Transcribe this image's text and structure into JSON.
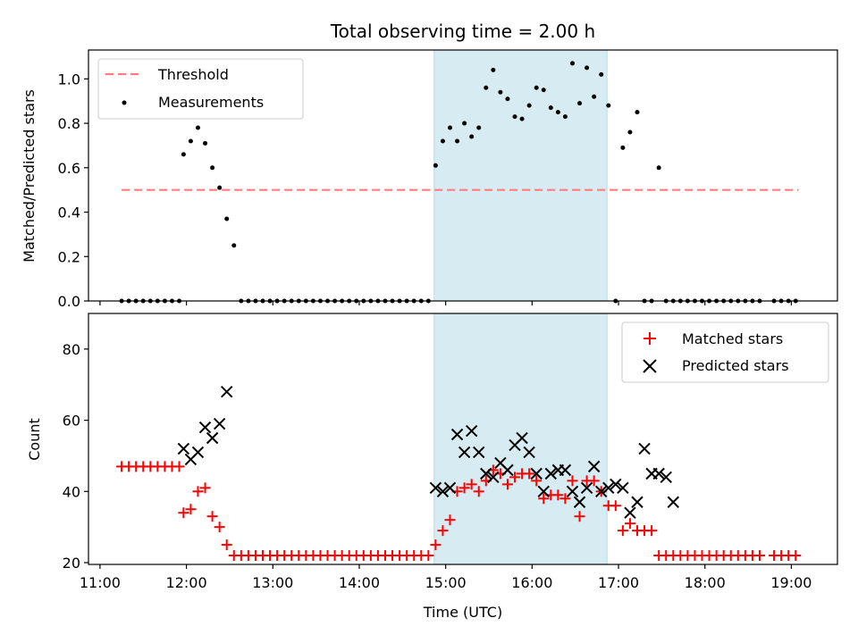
{
  "chart_data": [
    {
      "type": "scatter",
      "title": "Total observing time = 2.00 h",
      "xlabel": "",
      "ylabel": "Matched/Predicted stars",
      "ylim": [
        0,
        1.13
      ],
      "yticks": [
        "0.0",
        "0.2",
        "0.4",
        "0.6",
        "0.8",
        "1.0"
      ],
      "highlight_span": {
        "from": "14:52",
        "to": "16:52",
        "color": "#add8e6"
      },
      "legend": {
        "position": "top-left",
        "entries": [
          "Threshold",
          "Measurements"
        ]
      },
      "threshold": {
        "name": "Threshold",
        "value": 0.5,
        "from": "11:15",
        "to": "19:05",
        "color": "#ff7f7f"
      },
      "series": [
        {
          "name": "Measurements",
          "color": "#000000",
          "x": [
            "11:15",
            "11:20",
            "11:25",
            "11:30",
            "11:35",
            "11:40",
            "11:45",
            "11:50",
            "11:55",
            "11:58",
            "12:03",
            "12:08",
            "12:13",
            "12:18",
            "12:23",
            "12:28",
            "12:33",
            "12:38",
            "12:43",
            "12:48",
            "12:53",
            "12:58",
            "13:03",
            "13:08",
            "13:13",
            "13:18",
            "13:23",
            "13:28",
            "13:33",
            "13:38",
            "13:43",
            "13:48",
            "13:53",
            "13:58",
            "14:03",
            "14:08",
            "14:13",
            "14:18",
            "14:23",
            "14:28",
            "14:33",
            "14:38",
            "14:43",
            "14:48",
            "14:53",
            "14:58",
            "15:03",
            "15:08",
            "15:13",
            "15:18",
            "15:23",
            "15:28",
            "15:33",
            "15:38",
            "15:43",
            "15:48",
            "15:53",
            "15:58",
            "16:03",
            "16:08",
            "16:13",
            "16:18",
            "16:23",
            "16:28",
            "16:33",
            "16:38",
            "16:43",
            "16:48",
            "16:53",
            "16:58",
            "17:03",
            "17:08",
            "17:13",
            "17:18",
            "17:23",
            "17:28",
            "17:33",
            "17:38",
            "17:43",
            "17:48",
            "17:53",
            "17:58",
            "18:03",
            "18:08",
            "18:13",
            "18:18",
            "18:23",
            "18:28",
            "18:33",
            "18:38",
            "18:48",
            "18:53",
            "18:58",
            "19:03"
          ],
          "y": [
            0,
            0,
            0,
            0,
            0,
            0,
            0,
            0,
            0,
            0.66,
            0.72,
            0.78,
            0.71,
            0.6,
            0.51,
            0.37,
            0.25,
            0,
            0,
            0,
            0,
            0,
            0,
            0,
            0,
            0,
            0,
            0,
            0,
            0,
            0,
            0,
            0,
            0,
            0,
            0,
            0,
            0,
            0,
            0,
            0,
            0,
            0,
            0,
            0.61,
            0.72,
            0.78,
            0.72,
            0.8,
            0.74,
            0.78,
            0.96,
            1.04,
            0.94,
            0.91,
            0.83,
            0.82,
            0.88,
            0.96,
            0.95,
            0.87,
            0.85,
            0.83,
            1.07,
            0.89,
            1.05,
            0.92,
            1.02,
            0.88,
            0,
            0.69,
            0.76,
            0.85,
            0,
            0,
            0.6,
            0,
            0,
            0,
            0,
            0,
            0,
            0,
            0,
            0,
            0,
            0,
            0,
            0,
            0,
            0,
            0,
            0,
            0
          ]
        }
      ]
    },
    {
      "type": "scatter",
      "xlabel": "Time (UTC)",
      "ylabel": "Count",
      "ylim": [
        19.5,
        90
      ],
      "yticks": [
        "20",
        "40",
        "60",
        "80"
      ],
      "xticks": [
        "11:00",
        "12:00",
        "13:00",
        "14:00",
        "15:00",
        "16:00",
        "17:00",
        "18:00",
        "19:00"
      ],
      "xlim": [
        "10:52",
        "19:32"
      ],
      "highlight_span": {
        "from": "14:52",
        "to": "16:52",
        "color": "#add8e6"
      },
      "legend": {
        "position": "top-right",
        "entries": [
          "Matched stars",
          "Predicted stars"
        ]
      },
      "series": [
        {
          "name": "Matched stars",
          "marker": "plus",
          "color": "#ff0000",
          "x": [
            "11:15",
            "11:20",
            "11:25",
            "11:30",
            "11:35",
            "11:40",
            "11:45",
            "11:50",
            "11:55",
            "11:58",
            "12:03",
            "12:08",
            "12:13",
            "12:18",
            "12:23",
            "12:28",
            "12:33",
            "12:38",
            "12:43",
            "12:48",
            "12:53",
            "12:58",
            "13:03",
            "13:08",
            "13:13",
            "13:18",
            "13:23",
            "13:28",
            "13:33",
            "13:38",
            "13:43",
            "13:48",
            "13:53",
            "13:58",
            "14:03",
            "14:08",
            "14:13",
            "14:18",
            "14:23",
            "14:28",
            "14:33",
            "14:38",
            "14:43",
            "14:48",
            "14:53",
            "14:58",
            "15:03",
            "15:08",
            "15:13",
            "15:18",
            "15:23",
            "15:28",
            "15:33",
            "15:38",
            "15:43",
            "15:48",
            "15:53",
            "15:58",
            "16:03",
            "16:08",
            "16:13",
            "16:18",
            "16:23",
            "16:28",
            "16:33",
            "16:38",
            "16:43",
            "16:48",
            "16:53",
            "16:58",
            "17:03",
            "17:08",
            "17:13",
            "17:18",
            "17:23",
            "17:28",
            "17:33",
            "17:38",
            "17:43",
            "17:48",
            "17:53",
            "17:58",
            "18:03",
            "18:08",
            "18:13",
            "18:18",
            "18:23",
            "18:28",
            "18:33",
            "18:38",
            "18:48",
            "18:53",
            "18:58",
            "19:03"
          ],
          "y": [
            47,
            47,
            47,
            47,
            47,
            47,
            47,
            47,
            47,
            34,
            35,
            40,
            41,
            33,
            30,
            25,
            22,
            22,
            22,
            22,
            22,
            22,
            22,
            22,
            22,
            22,
            22,
            22,
            22,
            22,
            22,
            22,
            22,
            22,
            22,
            22,
            22,
            22,
            22,
            22,
            22,
            22,
            22,
            22,
            25,
            29,
            32,
            40,
            41,
            42,
            40,
            43,
            46,
            45,
            42,
            44,
            45,
            45,
            43,
            38,
            39,
            39,
            38,
            43,
            33,
            43,
            43,
            40,
            36,
            36,
            29,
            31,
            29,
            29,
            29,
            22,
            22,
            22,
            22,
            22,
            22,
            22,
            22,
            22,
            22,
            22,
            22,
            22,
            22,
            22,
            22,
            22,
            22,
            22
          ]
        },
        {
          "name": "Predicted stars",
          "marker": "x",
          "color": "#000000",
          "x": [
            "11:58",
            "12:03",
            "12:08",
            "12:13",
            "12:18",
            "12:23",
            "12:28",
            "14:53",
            "14:58",
            "15:03",
            "15:08",
            "15:13",
            "15:18",
            "15:23",
            "15:28",
            "15:33",
            "15:38",
            "15:43",
            "15:48",
            "15:53",
            "15:58",
            "16:03",
            "16:08",
            "16:13",
            "16:18",
            "16:23",
            "16:28",
            "16:33",
            "16:38",
            "16:43",
            "16:48",
            "16:53",
            "16:58",
            "17:03",
            "17:08",
            "17:13",
            "17:18",
            "17:23",
            "17:28",
            "17:33",
            "17:38"
          ],
          "y": [
            52,
            49,
            51,
            58,
            55,
            59,
            68,
            41,
            40,
            41,
            56,
            51,
            57,
            51,
            45,
            44,
            48,
            46,
            53,
            55,
            51,
            45,
            40,
            45,
            46,
            46,
            40,
            37,
            41,
            47,
            40,
            41,
            42,
            41,
            34,
            37,
            52,
            45,
            45,
            44,
            37
          ]
        }
      ]
    }
  ]
}
